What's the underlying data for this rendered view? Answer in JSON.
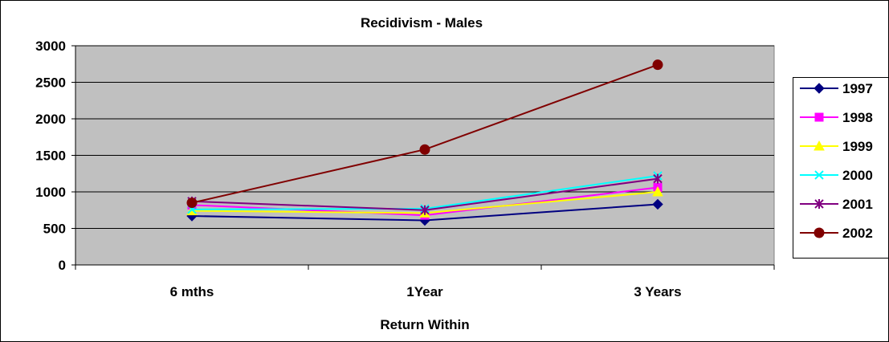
{
  "chart_data": {
    "type": "line",
    "title": "Recidivism - Males",
    "xlabel": "Return Within",
    "ylabel": "",
    "categories": [
      "6 mths",
      "1Year",
      "3 Years"
    ],
    "ylim": [
      0,
      3000
    ],
    "yticks": [
      0,
      500,
      1000,
      1500,
      2000,
      2500,
      3000
    ],
    "grid": true,
    "legend_position": "right",
    "plot_background": "#c0c0c0",
    "series": [
      {
        "name": "1997",
        "values": [
          670,
          610,
          830
        ],
        "color": "#000080",
        "marker": "diamond"
      },
      {
        "name": "1998",
        "values": [
          820,
          680,
          1060
        ],
        "color": "#ff00ff",
        "marker": "square"
      },
      {
        "name": "1999",
        "values": [
          740,
          710,
          1000
        ],
        "color": "#ffff00",
        "marker": "triangle"
      },
      {
        "name": "2000",
        "values": [
          760,
          770,
          1220
        ],
        "color": "#00ffff",
        "marker": "x"
      },
      {
        "name": "2001",
        "values": [
          870,
          750,
          1180
        ],
        "color": "#800080",
        "marker": "star"
      },
      {
        "name": "2002",
        "values": [
          850,
          1580,
          2740
        ],
        "color": "#800000",
        "marker": "circle"
      }
    ]
  }
}
